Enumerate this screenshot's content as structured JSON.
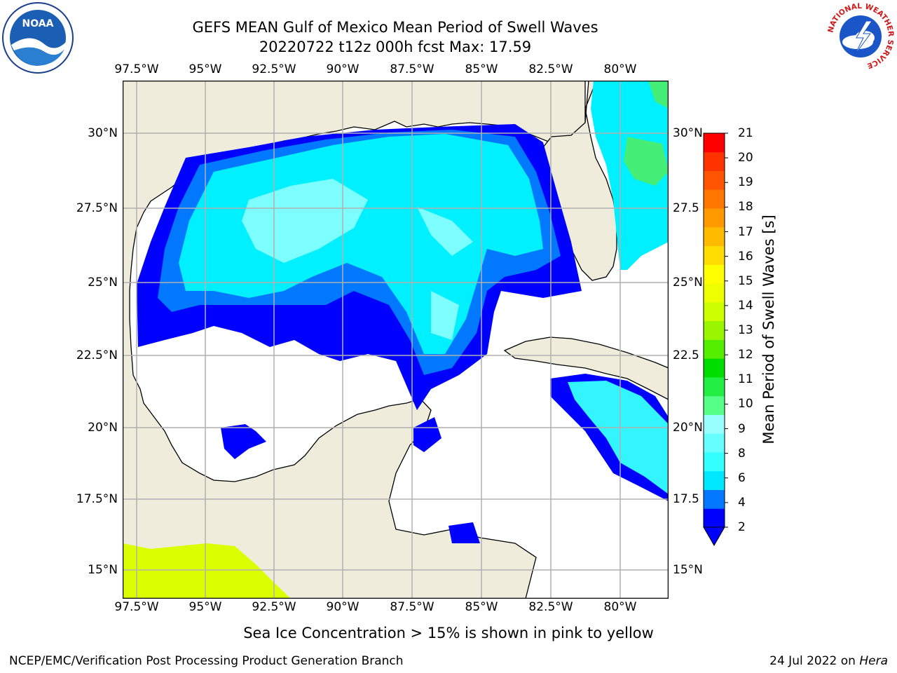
{
  "title": {
    "line1": "GEFS MEAN Gulf of Mexico Mean Period of Swell Waves",
    "line2": "20220722 t12z 000h fcst   Max: 17.59"
  },
  "map": {
    "lon_ticks": [
      "97.5°W",
      "95°W",
      "92.5°W",
      "90°W",
      "87.5°W",
      "85°W",
      "82.5°W",
      "80°W"
    ],
    "lat_ticks_left": [
      "30°N",
      "27.5°N",
      "25°N",
      "22.5°N",
      "20°N",
      "17.5°N",
      "15°N"
    ],
    "lat_ticks_right": [
      "30°N",
      "27.5",
      "25°N",
      "22.5",
      "20°N",
      "17.5",
      "15°N"
    ],
    "land_color": "#efecdc",
    "ocean_color": "#ffffff",
    "grid_color": "#b0b0b0"
  },
  "colorbar": {
    "label": "Mean Period of Swell Waves [s]",
    "ticks": [
      "21",
      "20",
      "19",
      "18",
      "17",
      "16",
      "15",
      "14",
      "13",
      "12",
      "11",
      "10",
      "9",
      "8",
      "6",
      "4",
      "2"
    ],
    "colors": [
      "#0000ff",
      "#0078ff",
      "#00e8ff",
      "#33ffff",
      "#66ffff",
      "#99ffff",
      "#55ff88",
      "#22ee44",
      "#00dd00",
      "#55ee00",
      "#99f500",
      "#ccff00",
      "#eeff00",
      "#ffff00",
      "#ffdd00",
      "#ffbb00",
      "#ff9900",
      "#ff7700",
      "#ff5500",
      "#ff3300",
      "#ff0000"
    ]
  },
  "caption": "Sea Ice Concentration > 15% is shown in pink to yellow",
  "footer": {
    "left": "NCEP/EMC/Verification Post Processing Product Generation Branch",
    "right_date": "24 Jul 2022 on ",
    "right_host": "Hera"
  },
  "logos": {
    "noaa": "NOAA",
    "nws_arc": "NATIONAL WEATHER SERVICE"
  }
}
